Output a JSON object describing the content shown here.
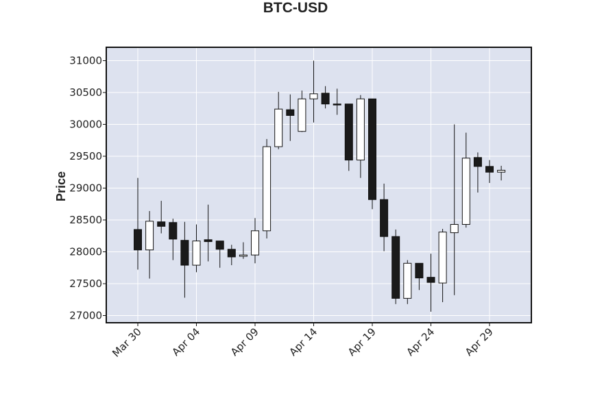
{
  "chart_data": {
    "type": "candlestick",
    "title": "BTC-USD",
    "ylabel": "Price",
    "xlabel": "",
    "ylim": [
      26900,
      31200
    ],
    "yticks": [
      27000,
      27500,
      28000,
      28500,
      29000,
      29500,
      30000,
      30500,
      31000
    ],
    "xticks": [
      {
        "index": 0,
        "label": "Mar 30"
      },
      {
        "index": 5,
        "label": "Apr 04"
      },
      {
        "index": 10,
        "label": "Apr 09"
      },
      {
        "index": 15,
        "label": "Apr 14"
      },
      {
        "index": 20,
        "label": "Apr 19"
      },
      {
        "index": 25,
        "label": "Apr 24"
      },
      {
        "index": 30,
        "label": "Apr 29"
      }
    ],
    "grid": true,
    "up_color": "#ffffff",
    "down_color": "#1a1a1a",
    "background_color": "#dde2ef",
    "candles": [
      {
        "o": 28350,
        "h": 29160,
        "l": 27720,
        "c": 28030
      },
      {
        "o": 28030,
        "h": 28640,
        "l": 27580,
        "c": 28480
      },
      {
        "o": 28470,
        "h": 28800,
        "l": 28290,
        "c": 28400
      },
      {
        "o": 28460,
        "h": 28520,
        "l": 27870,
        "c": 28200
      },
      {
        "o": 28180,
        "h": 28470,
        "l": 27280,
        "c": 27790
      },
      {
        "o": 27790,
        "h": 28430,
        "l": 27680,
        "c": 28170
      },
      {
        "o": 28190,
        "h": 28740,
        "l": 27850,
        "c": 28160
      },
      {
        "o": 28170,
        "h": 28170,
        "l": 27750,
        "c": 28040
      },
      {
        "o": 28040,
        "h": 28110,
        "l": 27790,
        "c": 27920
      },
      {
        "o": 27930,
        "h": 28150,
        "l": 27890,
        "c": 27950
      },
      {
        "o": 27950,
        "h": 28530,
        "l": 27820,
        "c": 28330
      },
      {
        "o": 28330,
        "h": 29770,
        "l": 28210,
        "c": 29650
      },
      {
        "o": 29650,
        "h": 30510,
        "l": 29610,
        "c": 30240
      },
      {
        "o": 30230,
        "h": 30470,
        "l": 29740,
        "c": 30140
      },
      {
        "o": 29890,
        "h": 30530,
        "l": 29880,
        "c": 30400
      },
      {
        "o": 30400,
        "h": 31000,
        "l": 30030,
        "c": 30480
      },
      {
        "o": 30490,
        "h": 30600,
        "l": 30250,
        "c": 30320
      },
      {
        "o": 30320,
        "h": 30560,
        "l": 30150,
        "c": 30310
      },
      {
        "o": 30320,
        "h": 30320,
        "l": 29270,
        "c": 29440
      },
      {
        "o": 29440,
        "h": 30460,
        "l": 29160,
        "c": 30400
      },
      {
        "o": 30400,
        "h": 30400,
        "l": 28670,
        "c": 28820
      },
      {
        "o": 28820,
        "h": 29070,
        "l": 28010,
        "c": 28240
      },
      {
        "o": 28240,
        "h": 28350,
        "l": 27180,
        "c": 27270
      },
      {
        "o": 27270,
        "h": 27870,
        "l": 27180,
        "c": 27820
      },
      {
        "o": 27820,
        "h": 27820,
        "l": 27400,
        "c": 27590
      },
      {
        "o": 27600,
        "h": 27970,
        "l": 27060,
        "c": 27520
      },
      {
        "o": 27510,
        "h": 28360,
        "l": 27210,
        "c": 28310
      },
      {
        "o": 28300,
        "h": 30000,
        "l": 27320,
        "c": 28430
      },
      {
        "o": 28430,
        "h": 29870,
        "l": 28380,
        "c": 29470
      },
      {
        "o": 29480,
        "h": 29560,
        "l": 28930,
        "c": 29340
      },
      {
        "o": 29340,
        "h": 29440,
        "l": 29080,
        "c": 29250
      },
      {
        "o": 29250,
        "h": 29350,
        "l": 29120,
        "c": 29280
      }
    ]
  }
}
